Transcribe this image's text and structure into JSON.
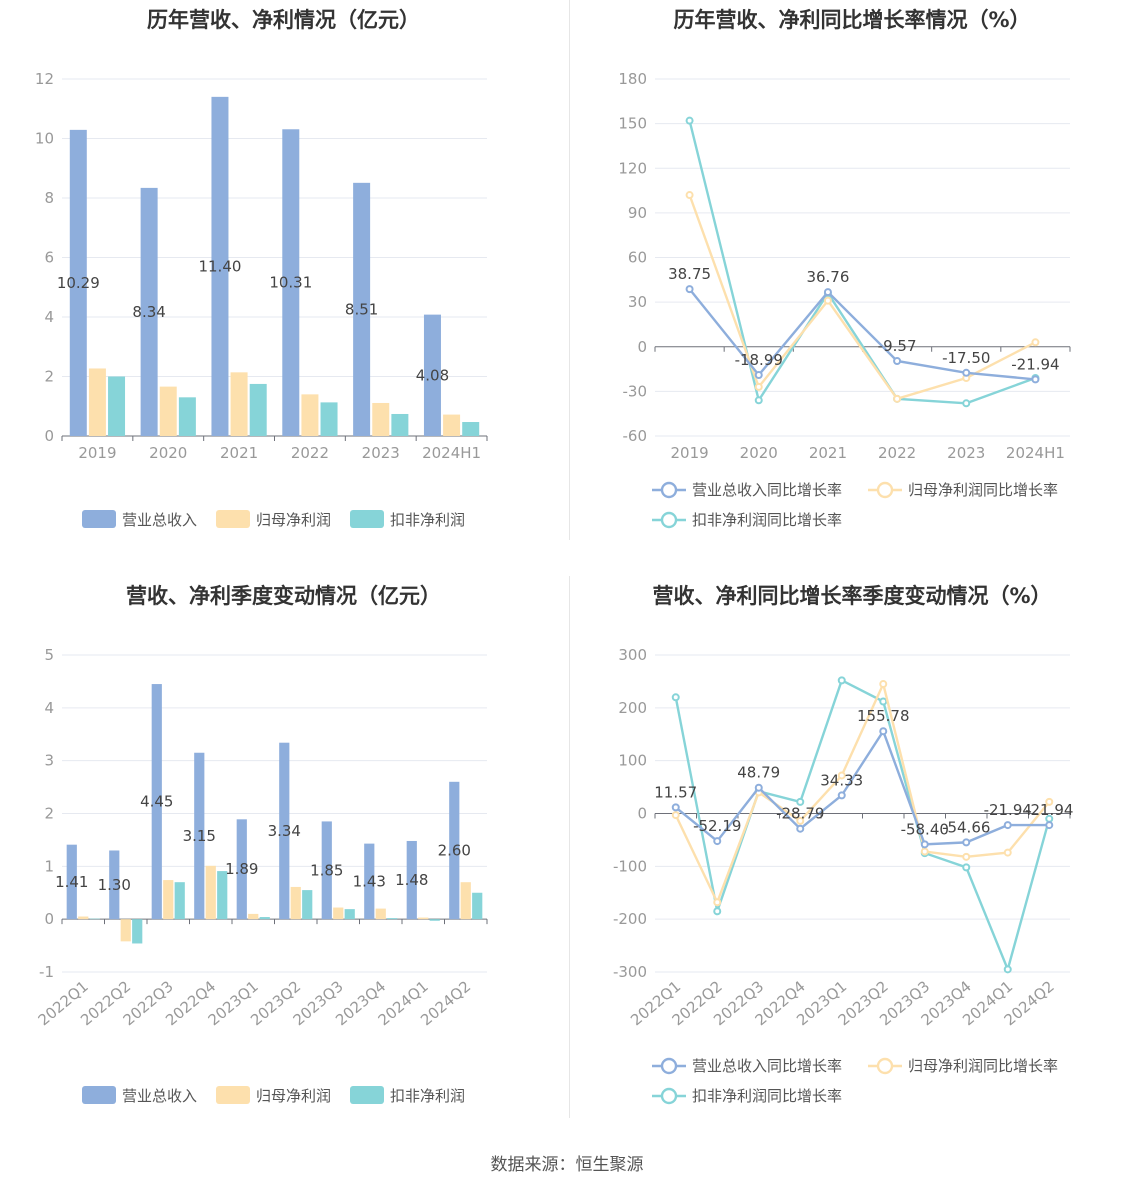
{
  "source": "数据来源：恒生聚源",
  "colors": {
    "revenue": "#8eaedc",
    "net_profit": "#fde0ad",
    "deducted_profit": "#86d4d8",
    "grid": "#e6e9f0",
    "axis": "#999999",
    "text": "#444444"
  },
  "chart_data": [
    {
      "id": "annual_amount",
      "type": "bar",
      "title": "历年营收、净利情况（亿元）",
      "categories": [
        "2019",
        "2020",
        "2021",
        "2022",
        "2023",
        "2024H1"
      ],
      "ylim": [
        0,
        12
      ],
      "yticks": [
        0,
        2,
        4,
        6,
        8,
        10,
        12
      ],
      "series": [
        {
          "name": "营业总收入",
          "color": "#8eaedc",
          "values": [
            10.29,
            8.34,
            11.4,
            10.31,
            8.51,
            4.08
          ],
          "labels": [
            "10.29",
            "8.34",
            "11.40",
            "10.31",
            "8.51",
            "4.08"
          ]
        },
        {
          "name": "归母净利润",
          "color": "#fde0ad",
          "values": [
            2.27,
            1.66,
            2.14,
            1.4,
            1.11,
            0.72
          ]
        },
        {
          "name": "扣非净利润",
          "color": "#86d4d8",
          "values": [
            2.0,
            1.3,
            1.75,
            1.13,
            0.74,
            0.47
          ]
        }
      ],
      "legend": "bottom"
    },
    {
      "id": "annual_growth",
      "type": "line",
      "title": "历年营收、净利同比增长率情况（%）",
      "categories": [
        "2019",
        "2020",
        "2021",
        "2022",
        "2023",
        "2024H1"
      ],
      "ylim": [
        -60,
        180
      ],
      "yticks": [
        -60,
        -30,
        0,
        30,
        60,
        90,
        120,
        150,
        180
      ],
      "series": [
        {
          "name": "营业总收入同比增长率",
          "color": "#8eaedc",
          "values": [
            38.75,
            -18.99,
            36.76,
            -9.57,
            -17.5,
            -21.94
          ],
          "labels": [
            "38.75",
            "-18.99",
            "36.76",
            "-9.57",
            "-17.50",
            "-21.94"
          ]
        },
        {
          "name": "归母净利润同比增长率",
          "color": "#fde0ad",
          "values": [
            102,
            -27,
            31,
            -35,
            -21,
            3
          ]
        },
        {
          "name": "扣非净利润同比增长率",
          "color": "#86d4d8",
          "values": [
            152,
            -36,
            36,
            -35,
            -38,
            -21
          ]
        }
      ],
      "legend": "bottom"
    },
    {
      "id": "quarterly_amount",
      "type": "bar",
      "title": "营收、净利季度变动情况（亿元）",
      "categories": [
        "2022Q1",
        "2022Q2",
        "2022Q3",
        "2022Q4",
        "2023Q1",
        "2023Q2",
        "2023Q3",
        "2023Q4",
        "2024Q1",
        "2024Q2"
      ],
      "ylim": [
        -1,
        5
      ],
      "yticks": [
        -1,
        0,
        1,
        2,
        3,
        4,
        5
      ],
      "series": [
        {
          "name": "营业总收入",
          "color": "#8eaedc",
          "values": [
            1.41,
            1.3,
            4.45,
            3.15,
            1.89,
            3.34,
            1.85,
            1.43,
            1.48,
            2.6
          ],
          "labels": [
            "1.41",
            "1.30",
            "4.45",
            "3.15",
            "1.89",
            "3.34",
            "1.85",
            "1.43",
            "1.48",
            "2.60"
          ]
        },
        {
          "name": "归母净利润",
          "color": "#fde0ad",
          "values": [
            0.05,
            -0.42,
            0.74,
            1.01,
            0.1,
            0.61,
            0.22,
            0.2,
            0.03,
            0.7
          ]
        },
        {
          "name": "扣非净利润",
          "color": "#86d4d8",
          "values": [
            0.01,
            -0.46,
            0.7,
            0.91,
            0.04,
            0.55,
            0.19,
            0.02,
            -0.03,
            0.5
          ]
        }
      ],
      "legend": "bottom"
    },
    {
      "id": "quarterly_growth",
      "type": "line",
      "title": "营收、净利同比增长率季度变动情况（%）",
      "categories": [
        "2022Q1",
        "2022Q2",
        "2022Q3",
        "2022Q4",
        "2023Q1",
        "2023Q2",
        "2023Q3",
        "2023Q4",
        "2024Q1",
        "2024Q2"
      ],
      "ylim": [
        -300,
        300
      ],
      "yticks": [
        -300,
        -200,
        -100,
        0,
        100,
        200,
        300
      ],
      "series": [
        {
          "name": "营业总收入同比增长率",
          "color": "#8eaedc",
          "values": [
            11.57,
            -52.19,
            48.79,
            -28.79,
            34.33,
            155.78,
            -58.4,
            -54.66,
            -21.94,
            -21.94
          ],
          "labels": [
            "11.57",
            "-52.19",
            "48.79",
            "-28.79",
            "34.33",
            "155.78",
            "-58.40",
            "-54.66",
            "-21.94",
            "-21.94"
          ]
        },
        {
          "name": "归母净利润同比增长率",
          "color": "#fde0ad",
          "values": [
            -3,
            -168,
            40,
            -14,
            72,
            245,
            -72,
            -82,
            -74,
            22
          ]
        },
        {
          "name": "扣非净利润同比增长率",
          "color": "#86d4d8",
          "values": [
            220,
            -185,
            42,
            22,
            252,
            212,
            -75,
            -102,
            -295,
            -10
          ]
        }
      ],
      "legend": "bottom"
    }
  ]
}
